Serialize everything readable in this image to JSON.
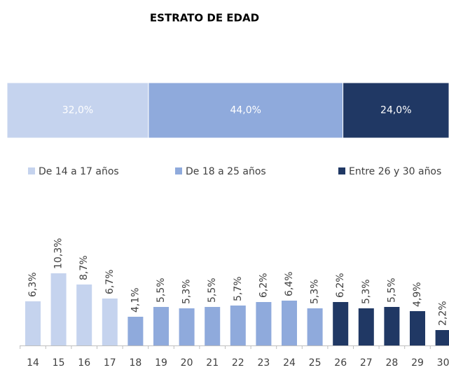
{
  "chart_data": [
    {
      "type": "stacked_bar",
      "title": "ESTRATO DE EDAD",
      "series": [
        {
          "name": "De 14 a 17 años",
          "color": "#c5d3ee",
          "values": [
            32.0
          ],
          "value_labels": [
            "32,0%"
          ]
        },
        {
          "name": "De 18 a 25 años",
          "color": "#8faadc",
          "values": [
            44.0
          ],
          "value_labels": [
            "44,0%"
          ]
        },
        {
          "name": "Entre 26 y 30 años",
          "color": "#203864",
          "values": [
            24.0
          ],
          "value_labels": [
            "24,0%"
          ]
        }
      ],
      "legend": "bottom"
    },
    {
      "type": "bar",
      "categories": [
        "14",
        "15",
        "16",
        "17",
        "18",
        "19",
        "20",
        "21",
        "22",
        "23",
        "24",
        "25",
        "26",
        "27",
        "28",
        "29",
        "30"
      ],
      "values": [
        6.3,
        10.3,
        8.7,
        6.7,
        4.1,
        5.5,
        5.3,
        5.5,
        5.7,
        6.2,
        6.4,
        5.3,
        6.2,
        5.3,
        5.5,
        4.9,
        2.2
      ],
      "value_labels": [
        "6,3%",
        "10,3%",
        "8,7%",
        "6,7%",
        "4,1%",
        "5,5%",
        "5,3%",
        "5,5%",
        "5,7%",
        "6,2%",
        "6,4%",
        "5,3%",
        "6,2%",
        "5,3%",
        "5,5%",
        "4,9%",
        "2,2%"
      ],
      "colors": [
        "#c5d3ee",
        "#c5d3ee",
        "#c5d3ee",
        "#c5d3ee",
        "#8faadc",
        "#8faadc",
        "#8faadc",
        "#8faadc",
        "#8faadc",
        "#8faadc",
        "#8faadc",
        "#8faadc",
        "#203864",
        "#203864",
        "#203864",
        "#203864",
        "#203864"
      ]
    }
  ]
}
